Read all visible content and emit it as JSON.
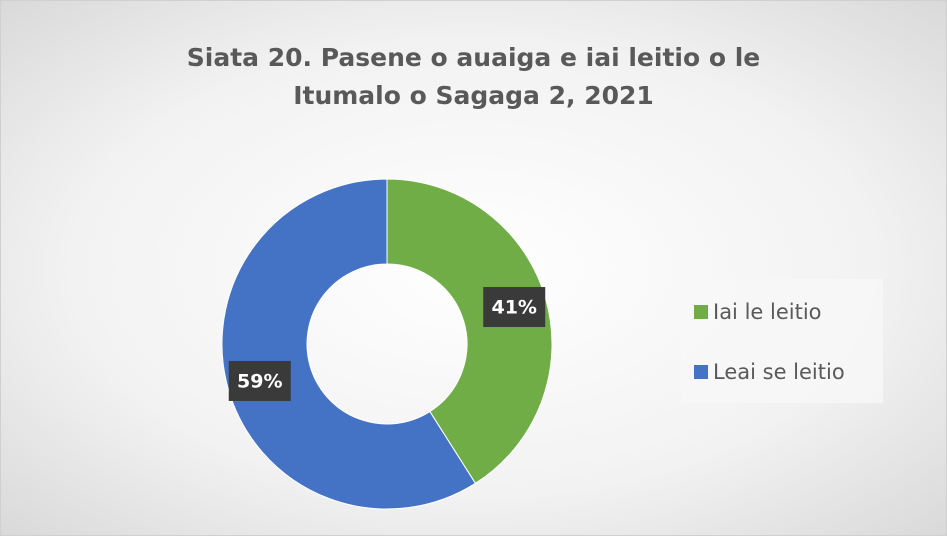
{
  "chart_data": {
    "type": "donut",
    "title": "Siata 20. Pasene o auaiga e iai leitio o le Itumalo o Sagaga 2, 2021",
    "categories": [
      "Iai le leitio",
      "Leai se leitio"
    ],
    "values": [
      41,
      59
    ],
    "value_labels": [
      "41%",
      "59%"
    ],
    "colors": [
      "#70ad47",
      "#4472c4"
    ],
    "legend": "right"
  }
}
